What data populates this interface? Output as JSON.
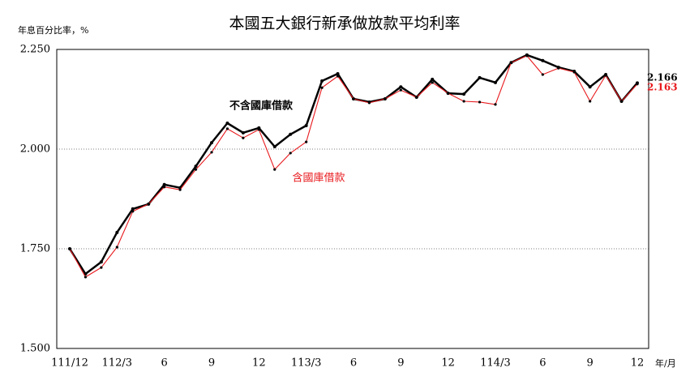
{
  "chart_data": {
    "type": "line",
    "title": "本國五大銀行新承做放款平均利率",
    "y_label": "年息百分比率，%",
    "x_label": "年/月",
    "categories": [
      "111/12",
      null,
      null,
      "112/3",
      null,
      null,
      "6",
      null,
      null,
      "9",
      null,
      null,
      "12",
      null,
      null,
      "113/3",
      null,
      null,
      "6",
      null,
      null,
      "9",
      null,
      null,
      "12",
      null,
      null,
      "114/3",
      null,
      null,
      "6",
      null,
      null,
      "9",
      null,
      null,
      "12"
    ],
    "series": [
      {
        "name": "不含國庫借款",
        "color": "#000000",
        "values": [
          1.75,
          1.687,
          1.717,
          1.791,
          1.85,
          1.862,
          1.911,
          1.903,
          1.957,
          2.016,
          2.065,
          2.041,
          2.053,
          2.006,
          2.037,
          2.059,
          2.171,
          2.189,
          2.126,
          2.118,
          2.126,
          2.156,
          2.13,
          2.175,
          2.14,
          2.138,
          2.179,
          2.167,
          2.217,
          2.236,
          2.222,
          2.205,
          2.195,
          2.156,
          2.187,
          2.12,
          2.166
        ]
      },
      {
        "name": "含國庫借款",
        "color": "#e8191d",
        "values": [
          1.75,
          1.679,
          1.703,
          1.754,
          1.844,
          1.862,
          1.905,
          1.898,
          1.949,
          1.992,
          2.051,
          2.028,
          2.049,
          1.949,
          1.99,
          2.018,
          2.154,
          2.183,
          2.126,
          2.116,
          2.126,
          2.148,
          2.13,
          2.167,
          2.14,
          2.12,
          2.118,
          2.112,
          2.217,
          2.234,
          2.187,
          2.203,
          2.193,
          2.12,
          2.185,
          2.12,
          2.163
        ]
      }
    ],
    "ylim": [
      1.5,
      2.25
    ],
    "yticks": [
      {
        "value": 1.5,
        "label": "1.500"
      },
      {
        "value": 1.75,
        "label": "1.750"
      },
      {
        "value": 2.0,
        "label": "2.000"
      },
      {
        "value": 2.25,
        "label": "2.250"
      }
    ],
    "grid": true
  }
}
